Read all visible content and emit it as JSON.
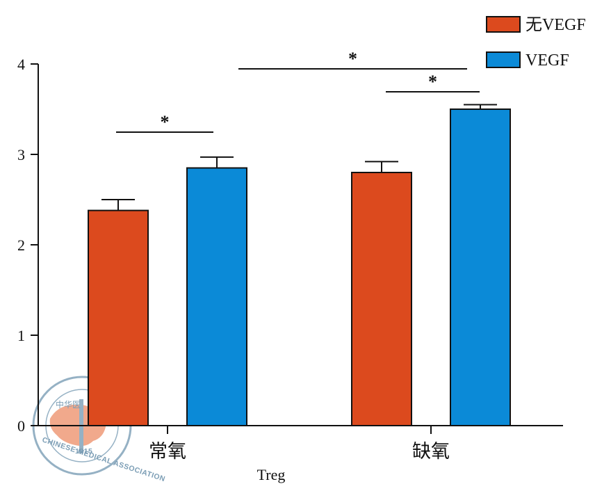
{
  "chart_data": {
    "type": "bar",
    "xlabel": "Treg",
    "ylabel": "",
    "ylim": [
      0,
      4
    ],
    "yticks": [
      0,
      1,
      2,
      3,
      4
    ],
    "categories": [
      "常氧",
      "缺氧"
    ],
    "series": [
      {
        "name": "无VEGF",
        "color": "#dc4a1e",
        "values": [
          2.38,
          2.8
        ],
        "errors": [
          0.12,
          0.12
        ]
      },
      {
        "name": "VEGF",
        "color": "#0b8ad7",
        "values": [
          2.85,
          3.5
        ],
        "errors": [
          0.12,
          0.05
        ]
      }
    ],
    "legend_position": "top-right",
    "significance": [
      {
        "label": "*",
        "between": "常氧: 无VEGF vs VEGF"
      },
      {
        "label": "*",
        "between": "缺氧: 无VEGF vs VEGF"
      },
      {
        "label": "*",
        "between": "常氧 VEGF vs 缺氧 VEGF"
      }
    ]
  },
  "watermark": {
    "text_cn": "中华医",
    "text_en": "CHINESE MEDICAL ASSOCIATION",
    "year": "1915"
  }
}
